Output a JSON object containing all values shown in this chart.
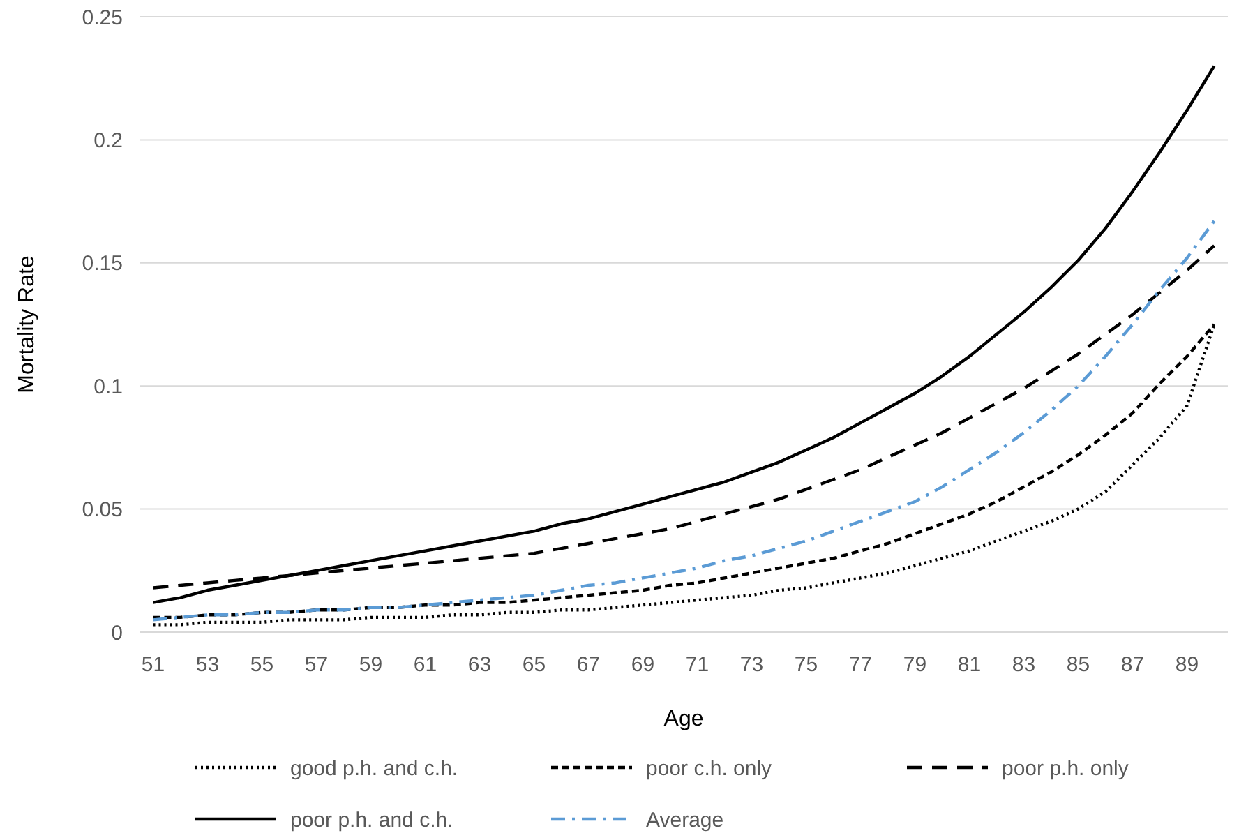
{
  "chart_data": {
    "type": "line",
    "xlabel": "Age",
    "ylabel": "Mortality Rate",
    "categories": [
      "51",
      null,
      "53",
      null,
      "55",
      null,
      "57",
      null,
      "59",
      null,
      "61",
      null,
      "63",
      null,
      "65",
      null,
      "67",
      null,
      "69",
      null,
      "71",
      null,
      "73",
      null,
      "75",
      null,
      "77",
      null,
      "79",
      null,
      "81",
      null,
      "83",
      null,
      "85",
      null,
      "87",
      null,
      "89",
      null
    ],
    "ylim": [
      0,
      0.25
    ],
    "yticks": [
      0,
      0.05,
      0.1,
      0.15,
      0.2,
      0.25
    ],
    "grid": "y",
    "legend": "bottom",
    "marker": "none",
    "series": [
      {
        "name": "good p.h. and c.h.",
        "color": "#000000",
        "line_style": "dotted",
        "values": [
          0.003,
          0.003,
          0.004,
          0.004,
          0.004,
          0.005,
          0.005,
          0.005,
          0.006,
          0.006,
          0.006,
          0.007,
          0.007,
          0.008,
          0.008,
          0.009,
          0.009,
          0.01,
          0.011,
          0.012,
          0.013,
          0.014,
          0.015,
          0.017,
          0.018,
          0.02,
          0.022,
          0.024,
          0.027,
          0.03,
          0.033,
          0.037,
          0.041,
          0.045,
          0.05,
          0.057,
          0.068,
          0.079,
          0.092,
          0.125
        ]
      },
      {
        "name": "poor c.h. only",
        "color": "#000000",
        "line_style": "dashed",
        "values": [
          0.006,
          0.006,
          0.007,
          0.007,
          0.008,
          0.008,
          0.009,
          0.009,
          0.01,
          0.01,
          0.011,
          0.011,
          0.012,
          0.012,
          0.013,
          0.014,
          0.015,
          0.016,
          0.017,
          0.019,
          0.02,
          0.022,
          0.024,
          0.026,
          0.028,
          0.03,
          0.033,
          0.036,
          0.04,
          0.044,
          0.048,
          0.053,
          0.059,
          0.065,
          0.072,
          0.08,
          0.089,
          0.101,
          0.112,
          0.125
        ]
      },
      {
        "name": "poor p.h. only",
        "color": "#000000",
        "line_style": "dashed",
        "values": [
          0.018,
          0.019,
          0.02,
          0.021,
          0.022,
          0.023,
          0.024,
          0.025,
          0.026,
          0.027,
          0.028,
          0.029,
          0.03,
          0.031,
          0.032,
          0.034,
          0.036,
          0.038,
          0.04,
          0.042,
          0.045,
          0.048,
          0.051,
          0.054,
          0.058,
          0.062,
          0.066,
          0.071,
          0.076,
          0.081,
          0.087,
          0.093,
          0.099,
          0.106,
          0.113,
          0.121,
          0.129,
          0.138,
          0.147,
          0.157
        ]
      },
      {
        "name": "poor p.h. and c.h.",
        "color": "#000000",
        "line_style": "solid",
        "values": [
          0.012,
          0.014,
          0.017,
          0.019,
          0.021,
          0.023,
          0.025,
          0.027,
          0.029,
          0.031,
          0.033,
          0.035,
          0.037,
          0.039,
          0.041,
          0.044,
          0.046,
          0.049,
          0.052,
          0.055,
          0.058,
          0.061,
          0.065,
          0.069,
          0.074,
          0.079,
          0.085,
          0.091,
          0.097,
          0.104,
          0.112,
          0.121,
          0.13,
          0.14,
          0.151,
          0.164,
          0.179,
          0.195,
          0.212,
          0.23
        ]
      },
      {
        "name": "Average",
        "color": "#5b9bd5",
        "line_style": "dashed",
        "values": [
          0.005,
          0.006,
          0.007,
          0.007,
          0.008,
          0.008,
          0.009,
          0.009,
          0.01,
          0.01,
          0.011,
          0.012,
          0.013,
          0.014,
          0.015,
          0.017,
          0.019,
          0.02,
          0.022,
          0.024,
          0.026,
          0.029,
          0.031,
          0.034,
          0.037,
          0.041,
          0.045,
          0.049,
          0.053,
          0.059,
          0.066,
          0.073,
          0.081,
          0.09,
          0.1,
          0.112,
          0.125,
          0.139,
          0.152,
          0.167
        ]
      }
    ]
  }
}
